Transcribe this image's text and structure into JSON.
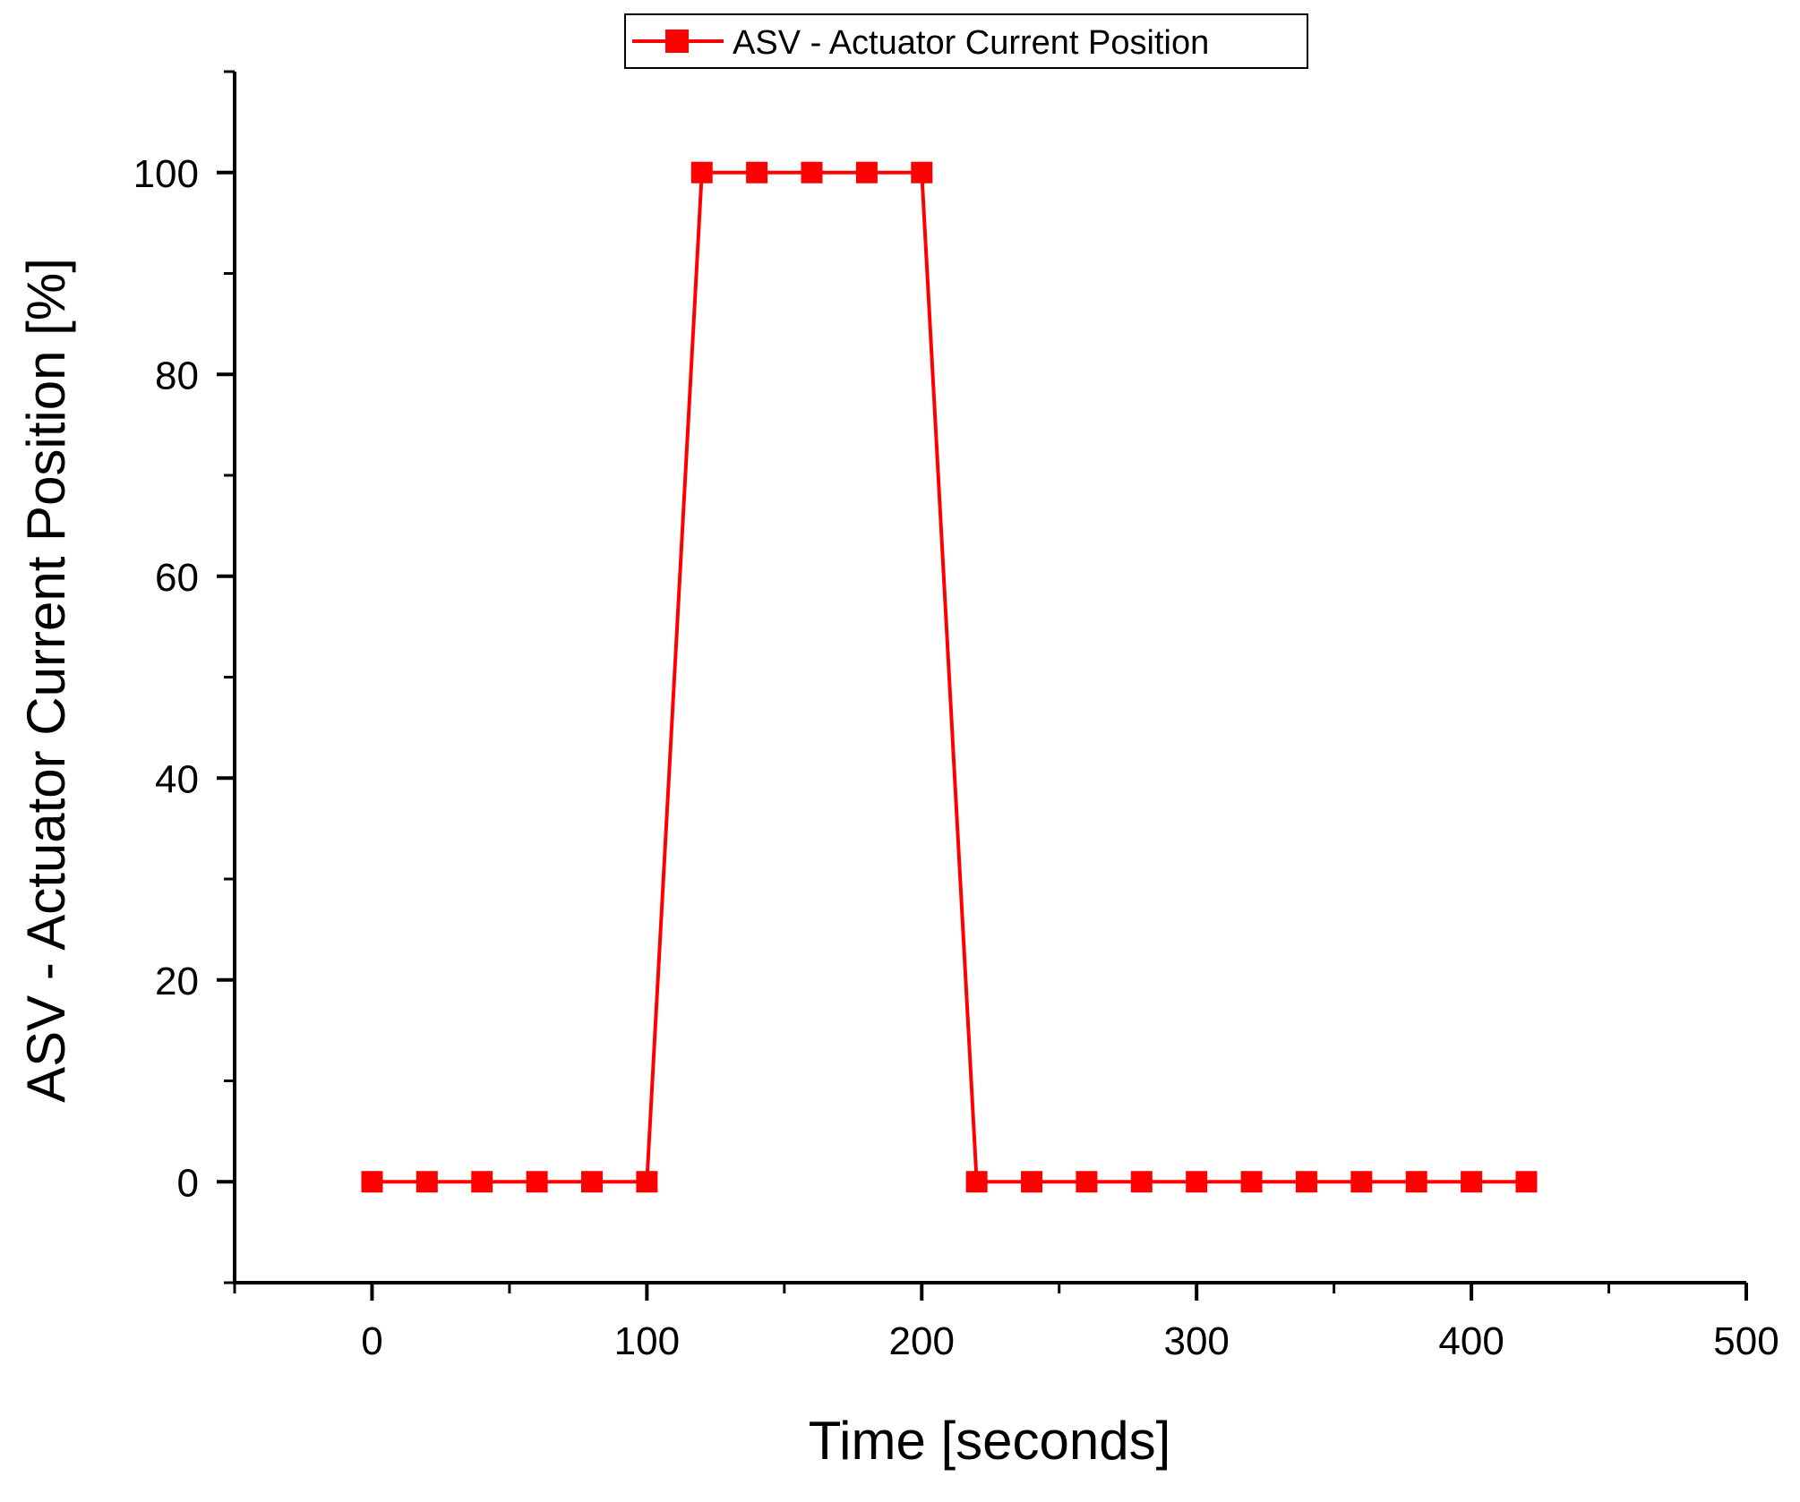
{
  "chart_data": {
    "type": "line",
    "title": "",
    "xlabel": "Time [seconds]",
    "ylabel": "ASV - Actuator Current Position [%]",
    "xlim": [
      -50,
      500
    ],
    "ylim": [
      -10,
      110
    ],
    "x_ticks": [
      0,
      100,
      200,
      300,
      400,
      500
    ],
    "y_ticks": [
      0,
      20,
      40,
      60,
      80,
      100
    ],
    "grid": false,
    "legend_position": "top-center",
    "series": [
      {
        "name": "ASV - Actuator Current Position",
        "color": "#ff0000",
        "marker": "square",
        "line_style": "solid",
        "x": [
          0,
          20,
          40,
          60,
          80,
          100,
          120,
          140,
          160,
          180,
          200,
          220,
          240,
          260,
          280,
          300,
          320,
          340,
          360,
          380,
          400,
          420
        ],
        "y": [
          0,
          0,
          0,
          0,
          0,
          0,
          100,
          100,
          100,
          100,
          100,
          0,
          0,
          0,
          0,
          0,
          0,
          0,
          0,
          0,
          0,
          0
        ]
      }
    ]
  }
}
